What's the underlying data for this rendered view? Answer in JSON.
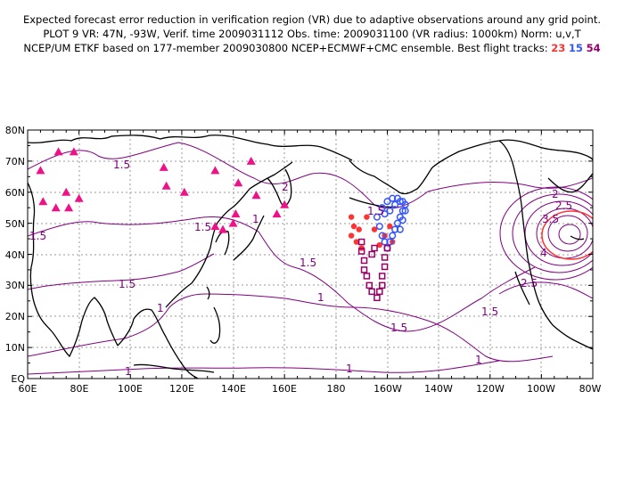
{
  "header": {
    "line1": "Expected forecast error reduction in verification region (VR) due to adaptive observations around any grid point.",
    "line2": "PLOT 9 VR: 47N, -93W, Verif. time 2009031112 Obs. time: 2009031100 (VR radius: 1000km) Norm: u,v,T",
    "line3_prefix": "NCEP/UM ETKF based on 177-member 2009030800 NCEP+ECMWF+CMC ensemble. Best flight tracks:",
    "track_a": "23",
    "track_b": "15",
    "track_c": "54"
  },
  "map": {
    "lat_labels": [
      "80N",
      "70N",
      "60N",
      "50N",
      "40N",
      "30N",
      "20N",
      "10N",
      "EQ"
    ],
    "lon_labels": [
      "60E",
      "80E",
      "100E",
      "120E",
      "140E",
      "160E",
      "180",
      "160W",
      "140W",
      "120W",
      "100W",
      "80W"
    ],
    "contour_labels": [
      "1.5",
      "1.5",
      "1.5",
      "1.5",
      "1.5",
      "1.5",
      "1.5",
      "1.5",
      "1",
      "1",
      "1",
      "1",
      "1",
      "1",
      "2",
      "2",
      "2.5",
      "2.5",
      "3.5",
      "4"
    ],
    "colors": {
      "contour": "#800080",
      "coast": "#000000",
      "grid": "#999999",
      "track23": "#ff3333",
      "track15": "#3355ff",
      "track54": "#990066",
      "triangles": "#ee1188",
      "verification_circle": "#ff3333"
    },
    "triangles": [
      {
        "lon": 65,
        "lat": 67
      },
      {
        "lon": 72,
        "lat": 73
      },
      {
        "lon": 66,
        "lat": 57
      },
      {
        "lon": 71,
        "lat": 55
      },
      {
        "lon": 75,
        "lat": 60
      },
      {
        "lon": 76,
        "lat": 55
      },
      {
        "lon": 80,
        "lat": 58
      },
      {
        "lon": 78,
        "lat": 73
      },
      {
        "lon": 113,
        "lat": 68
      },
      {
        "lon": 114,
        "lat": 62
      },
      {
        "lon": 121,
        "lat": 60
      },
      {
        "lon": 133,
        "lat": 67
      },
      {
        "lon": 142,
        "lat": 63
      },
      {
        "lon": 147,
        "lat": 70
      },
      {
        "lon": 149,
        "lat": 59
      },
      {
        "lon": 133,
        "lat": 49
      },
      {
        "lon": 136,
        "lat": 48
      },
      {
        "lon": 140,
        "lat": 50
      },
      {
        "lon": 141,
        "lat": 53
      },
      {
        "lon": 157,
        "lat": 53
      },
      {
        "lon": 160,
        "lat": 56
      }
    ],
    "track23": [
      {
        "lon": 186,
        "lat": 52
      },
      {
        "lon": 187,
        "lat": 49
      },
      {
        "lon": 186,
        "lat": 46
      },
      {
        "lon": 188,
        "lat": 44
      },
      {
        "lon": 190,
        "lat": 42
      },
      {
        "lon": 189,
        "lat": 48
      },
      {
        "lon": 192,
        "lat": 52
      },
      {
        "lon": 195,
        "lat": 48
      },
      {
        "lon": 197,
        "lat": 43
      },
      {
        "lon": 199,
        "lat": 46
      },
      {
        "lon": 201,
        "lat": 49
      },
      {
        "lon": 202,
        "lat": 44
      }
    ],
    "track15": [
      {
        "lon": 196,
        "lat": 52
      },
      {
        "lon": 197,
        "lat": 49
      },
      {
        "lon": 198,
        "lat": 46
      },
      {
        "lon": 199,
        "lat": 44
      },
      {
        "lon": 200,
        "lat": 42
      },
      {
        "lon": 201,
        "lat": 44
      },
      {
        "lon": 202,
        "lat": 46
      },
      {
        "lon": 203,
        "lat": 48
      },
      {
        "lon": 204,
        "lat": 50
      },
      {
        "lon": 205,
        "lat": 52
      },
      {
        "lon": 206,
        "lat": 54
      },
      {
        "lon": 207,
        "lat": 56
      },
      {
        "lon": 205,
        "lat": 57
      },
      {
        "lon": 203,
        "lat": 56
      },
      {
        "lon": 201,
        "lat": 54
      },
      {
        "lon": 199,
        "lat": 53
      },
      {
        "lon": 198,
        "lat": 55
      },
      {
        "lon": 200,
        "lat": 57
      },
      {
        "lon": 202,
        "lat": 58
      },
      {
        "lon": 204,
        "lat": 58
      },
      {
        "lon": 206,
        "lat": 57
      },
      {
        "lon": 207,
        "lat": 54
      },
      {
        "lon": 206,
        "lat": 51
      },
      {
        "lon": 205,
        "lat": 48
      }
    ],
    "track54": [
      {
        "lon": 190,
        "lat": 44
      },
      {
        "lon": 190,
        "lat": 41
      },
      {
        "lon": 191,
        "lat": 38
      },
      {
        "lon": 191,
        "lat": 35
      },
      {
        "lon": 192,
        "lat": 33
      },
      {
        "lon": 193,
        "lat": 30
      },
      {
        "lon": 194,
        "lat": 28
      },
      {
        "lon": 196,
        "lat": 26
      },
      {
        "lon": 197,
        "lat": 28
      },
      {
        "lon": 198,
        "lat": 30
      },
      {
        "lon": 198,
        "lat": 33
      },
      {
        "lon": 199,
        "lat": 36
      },
      {
        "lon": 199,
        "lat": 39
      },
      {
        "lon": 200,
        "lat": 42
      },
      {
        "lon": 195,
        "lat": 42
      },
      {
        "lon": 194,
        "lat": 40
      }
    ]
  }
}
